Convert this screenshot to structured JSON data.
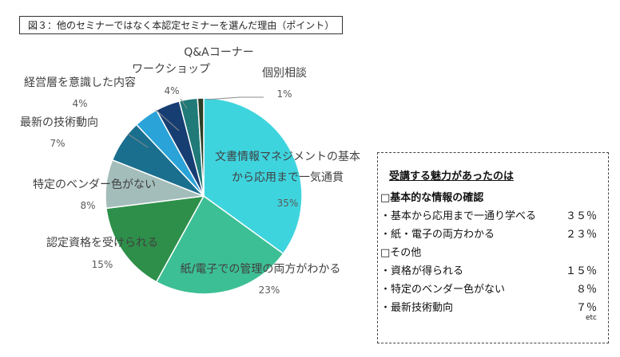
{
  "title": "図３：他のセミナーではなく本認定セミナーを選んだ理由（ポイント）",
  "chart_data": {
    "type": "pie",
    "slices": [
      {
        "label_lines": [
          "文書情報マネジメントの基本",
          "から応用まで一気通貫"
        ],
        "value": 35,
        "value_label": "35%",
        "color": "#3ED4DE"
      },
      {
        "label_lines": [
          "紙/電子での管理の両方がわかる"
        ],
        "value": 23,
        "value_label": "23%",
        "color": "#3CBF94"
      },
      {
        "label_lines": [
          "認定資格を受けられる"
        ],
        "value": 15,
        "value_label": "15%",
        "color": "#2E8F4A"
      },
      {
        "label_lines": [
          "特定のベンダー色がない"
        ],
        "value": 8,
        "value_label": "8%",
        "color": "#A3BDBA"
      },
      {
        "label_lines": [
          "最新の技術動向"
        ],
        "value": 7,
        "value_label": "7%",
        "color": "#1B6F8E"
      },
      {
        "label_lines": [
          "経営層を意識した内容"
        ],
        "value": 4,
        "value_label": "4%",
        "color": "#2AA3D8"
      },
      {
        "label_lines": [
          "ワークショップ"
        ],
        "value": 4,
        "value_label": "4%",
        "color": "#173E73"
      },
      {
        "label_lines": [
          "Q&Aコーナー"
        ],
        "value": 3,
        "value_label": "",
        "color": "#1F7A78"
      },
      {
        "label_lines": [
          "個別相談"
        ],
        "value": 1,
        "value_label": "1%",
        "color": "#2B3F26"
      }
    ]
  },
  "summary_box": {
    "heading": "受講する魅力があったのは",
    "section1": "□基本的な情報の確認",
    "section2": "□その他",
    "items": [
      {
        "label": "・基本から応用まで一通り学べる",
        "pct": "３５％"
      },
      {
        "label": "・紙・電子の両方わかる",
        "pct": "２３％"
      },
      {
        "label": "・資格が得られる",
        "pct": "１５％"
      },
      {
        "label": "・特定のベンダー色がない",
        "pct": "８％"
      },
      {
        "label": "・最新技術動向",
        "pct": "７％"
      }
    ],
    "etc": "etc"
  }
}
